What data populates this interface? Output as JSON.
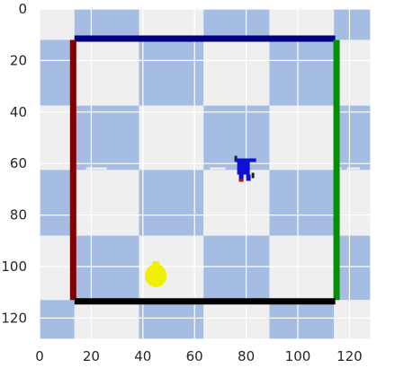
{
  "chart_data": {
    "type": "image",
    "title": "",
    "xlabel": "",
    "ylabel": "",
    "xlim": [
      0,
      128
    ],
    "ylim": [
      128,
      0
    ],
    "x_ticks": [
      0,
      20,
      40,
      60,
      80,
      100,
      120
    ],
    "y_ticks": [
      0,
      20,
      40,
      60,
      80,
      100,
      120
    ],
    "grid": true,
    "colors": {
      "background_light": "#efefef",
      "background_blue": "#a6bde3",
      "grid": "#ffffff",
      "wall_top": "#000080",
      "wall_left": "#800000",
      "wall_right": "#009000",
      "wall_bottom": "#000000",
      "agent": "#1010d0",
      "goal": "#f0f000"
    },
    "board": {
      "checker_columns": [
        0,
        13.5,
        38.5,
        63.5,
        89,
        114,
        128
      ],
      "checker_rows": [
        0,
        12,
        37.5,
        62.5,
        88,
        113,
        128
      ],
      "top_row_pattern": [
        "light",
        "blue",
        "light",
        "blue",
        "light",
        "blue"
      ]
    },
    "walls": [
      {
        "name": "top",
        "from": [
          13.5,
          11.5
        ],
        "to": [
          114.5,
          11.5
        ],
        "color": "#000080"
      },
      {
        "name": "left",
        "from": [
          13,
          12
        ],
        "to": [
          13,
          113
        ],
        "color": "#800000"
      },
      {
        "name": "right",
        "from": [
          115,
          12
        ],
        "to": [
          115,
          113
        ],
        "color": "#009000"
      },
      {
        "name": "bottom",
        "from": [
          13.5,
          113.5
        ],
        "to": [
          114.5,
          113.5
        ],
        "color": "#000000"
      }
    ],
    "agent": {
      "x": 80,
      "y": 61.5
    },
    "goal": {
      "x": 45,
      "y": 103.5
    }
  }
}
